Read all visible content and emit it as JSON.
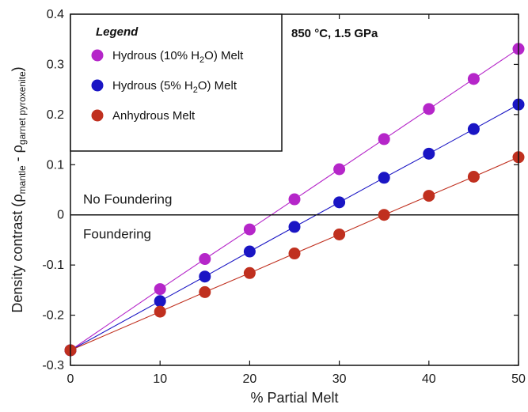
{
  "chart_data": {
    "type": "scatter",
    "title": "",
    "xlabel": "% Partial Melt",
    "ylabel": {
      "main": "Density contrast (ρ",
      "sub1": "mantle",
      "mid": " - ρ",
      "sub2": "garnet pyroxenite",
      "end": ")"
    },
    "xlim": [
      0,
      50
    ],
    "ylim": [
      -0.3,
      0.4
    ],
    "xticks": [
      0,
      10,
      20,
      30,
      40,
      50
    ],
    "yticks": [
      -0.3,
      -0.2,
      -0.1,
      0,
      0.1,
      0.2,
      0.3,
      0.4
    ],
    "xtick_labels": [
      "0",
      "10",
      "20",
      "30",
      "40",
      "50"
    ],
    "ytick_labels": [
      "-0.3",
      "-0.2",
      "-0.1",
      "0",
      "0.1",
      "0.2",
      "0.3",
      "0.4"
    ],
    "grid": false,
    "legend_position": "top-left",
    "reference_line_y": 0,
    "series": [
      {
        "name_main": "Hydrous (10% H",
        "name_sub": "2",
        "name_end": "O) Melt",
        "color": "#b526c9",
        "x": [
          0,
          10,
          15,
          20,
          25,
          30,
          35,
          40,
          45,
          50
        ],
        "y": [
          -0.27,
          -0.148,
          -0.088,
          -0.029,
          0.031,
          0.091,
          0.151,
          0.211,
          0.271,
          0.331
        ]
      },
      {
        "name_main": "Hydrous (5% H",
        "name_sub": "2",
        "name_end": "O) Melt",
        "color": "#1a15c4",
        "x": [
          0,
          10,
          15,
          20,
          25,
          30,
          35,
          40,
          45,
          50
        ],
        "y": [
          -0.27,
          -0.172,
          -0.123,
          -0.073,
          -0.024,
          0.025,
          0.074,
          0.122,
          0.171,
          0.22
        ]
      },
      {
        "name_main": "Anhydrous Melt",
        "name_sub": "",
        "name_end": "",
        "color": "#c0301f",
        "x": [
          0,
          10,
          15,
          20,
          25,
          30,
          35,
          40,
          45,
          50
        ],
        "y": [
          -0.27,
          -0.193,
          -0.154,
          -0.116,
          -0.077,
          -0.039,
          0.0,
          0.038,
          0.076,
          0.115
        ]
      }
    ]
  },
  "legend": {
    "title": "Legend"
  },
  "conditions": {
    "main": "850 °C, 1.5 GPa"
  },
  "annotations": {
    "above": "No Foundering",
    "below": "Foundering"
  }
}
